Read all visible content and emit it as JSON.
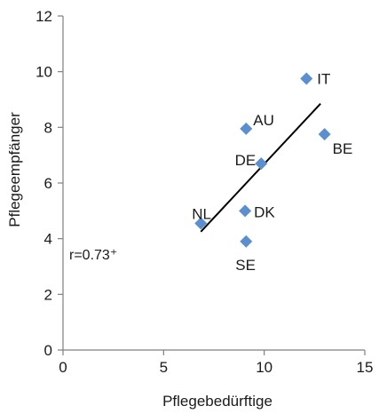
{
  "chart_data": {
    "type": "scatter",
    "xlabel": "Pflegebedürftige",
    "ylabel": "Pflegeempfänger",
    "xlim": [
      0,
      15
    ],
    "ylim": [
      0,
      12
    ],
    "xticks": [
      0,
      5,
      10,
      15
    ],
    "yticks": [
      0,
      2,
      4,
      6,
      8,
      10,
      12
    ],
    "grid": false,
    "marker_color": "#5b8fd0",
    "trend_color": "#000000",
    "points": [
      {
        "label": "IT",
        "x": 12.1,
        "y": 9.75
      },
      {
        "label": "AU",
        "x": 9.1,
        "y": 7.95
      },
      {
        "label": "BE",
        "x": 13.0,
        "y": 7.75
      },
      {
        "label": "DE",
        "x": 9.85,
        "y": 6.7
      },
      {
        "label": "NL",
        "x": 6.85,
        "y": 4.55
      },
      {
        "label": "DK",
        "x": 9.05,
        "y": 5.0
      },
      {
        "label": "SE",
        "x": 9.1,
        "y": 3.9
      }
    ],
    "trendline": {
      "x": [
        6.85,
        12.8
      ],
      "y": [
        4.25,
        8.85
      ]
    },
    "annotation": "r=0.73⁺"
  }
}
